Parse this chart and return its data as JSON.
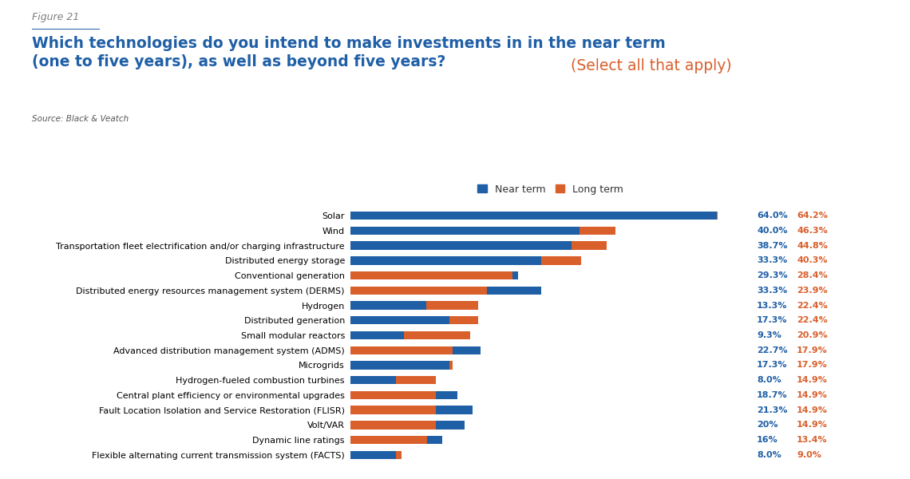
{
  "figure_label": "Figure 21",
  "title_bold": "Which technologies do you intend to make investments in in the near term\n(one to five years), as well as beyond five years?",
  "title_normal": " (Select all that apply)",
  "source": "Source: Black & Veatch",
  "categories": [
    "Solar",
    "Wind",
    "Transportation fleet electrification and/or charging infrastructure",
    "Distributed energy storage",
    "Conventional generation",
    "Distributed energy resources management system (DERMS)",
    "Hydrogen",
    "Distributed generation",
    "Small modular reactors",
    "Advanced distribution management system (ADMS)",
    "Microgrids",
    "Hydrogen-fueled combustion turbines",
    "Central plant efficiency or environmental upgrades",
    "Fault Location Isolation and Service Restoration (FLISR)",
    "Volt/VAR",
    "Dynamic line ratings",
    "Flexible alternating current transmission system (FACTS)"
  ],
  "near_term": [
    64.0,
    40.0,
    38.7,
    33.3,
    29.3,
    33.3,
    13.3,
    17.3,
    9.3,
    22.7,
    17.3,
    8.0,
    18.7,
    21.3,
    20.0,
    16.0,
    8.0
  ],
  "long_term": [
    64.2,
    46.3,
    44.8,
    40.3,
    28.4,
    23.9,
    22.4,
    22.4,
    20.9,
    17.9,
    17.9,
    14.9,
    14.9,
    14.9,
    14.9,
    13.4,
    9.0
  ],
  "near_term_labels": [
    "64.0%",
    "40.0%",
    "38.7%",
    "33.3%",
    "29.3%",
    "33.3%",
    "13.3%",
    "17.3%",
    "9.3%",
    "22.7%",
    "17.3%",
    "8.0%",
    "18.7%",
    "21.3%",
    "20%",
    "16%",
    "8.0%"
  ],
  "long_term_labels": [
    "64.2%",
    "46.3%",
    "44.8%",
    "40.3%",
    "28.4%",
    "23.9%",
    "22.4%",
    "22.4%",
    "20.9%",
    "17.9%",
    "17.9%",
    "14.9%",
    "14.9%",
    "14.9%",
    "14.9%",
    "13.4%",
    "9.0%"
  ],
  "near_term_color": "#1F5FA6",
  "long_term_color": "#D95F2B",
  "title_color": "#1F5FA6",
  "title_normal_color": "#D95F2B",
  "figure_label_color": "#7F7F7F",
  "near_term_label_color": "#1F5FA6",
  "long_term_label_color": "#D95F2B",
  "background_color": "#FFFFFF",
  "bar_height": 0.55,
  "xlim_max": 70
}
